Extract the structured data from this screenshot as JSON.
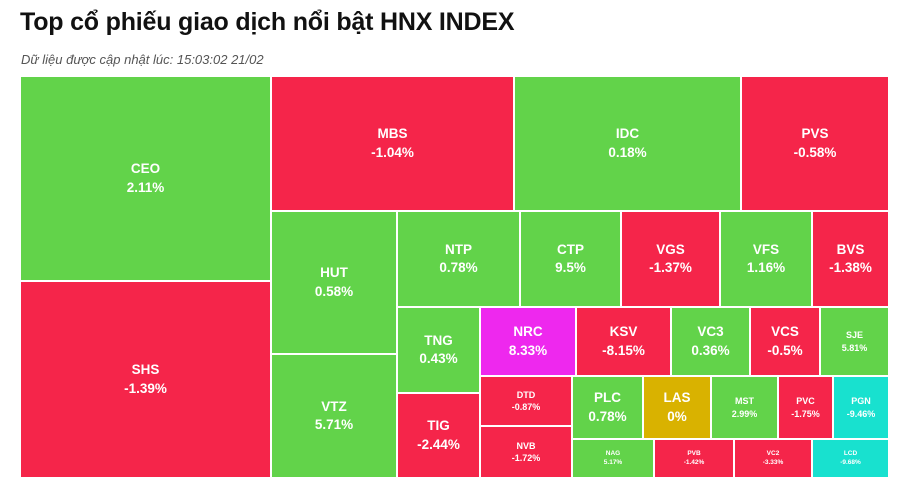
{
  "title": "Top cổ phiếu giao dịch nổi bật HNX INDEX",
  "subtitle": "Dữ liệu được cập nhật lúc: 15:03:02 21/02",
  "colors": {
    "up": "#62d34a",
    "down": "#f5254a",
    "ceiling": "#ee28ee",
    "floor": "#18e1cf",
    "ref": "#d9b200"
  },
  "chart_data": {
    "type": "treemap",
    "items": [
      {
        "ticker": "CEO",
        "change": "2.11%",
        "status": "up"
      },
      {
        "ticker": "SHS",
        "change": "-1.39%",
        "status": "down"
      },
      {
        "ticker": "MBS",
        "change": "-1.04%",
        "status": "down"
      },
      {
        "ticker": "IDC",
        "change": "0.18%",
        "status": "up"
      },
      {
        "ticker": "PVS",
        "change": "-0.58%",
        "status": "down"
      },
      {
        "ticker": "HUT",
        "change": "0.58%",
        "status": "up"
      },
      {
        "ticker": "VTZ",
        "change": "5.71%",
        "status": "up"
      },
      {
        "ticker": "NTP",
        "change": "0.78%",
        "status": "up"
      },
      {
        "ticker": "CTP",
        "change": "9.5%",
        "status": "up"
      },
      {
        "ticker": "VGS",
        "change": "-1.37%",
        "status": "down"
      },
      {
        "ticker": "VFS",
        "change": "1.16%",
        "status": "up"
      },
      {
        "ticker": "BVS",
        "change": "-1.38%",
        "status": "down"
      },
      {
        "ticker": "TNG",
        "change": "0.43%",
        "status": "up"
      },
      {
        "ticker": "TIG",
        "change": "-2.44%",
        "status": "down"
      },
      {
        "ticker": "NRC",
        "change": "8.33%",
        "status": "ceiling"
      },
      {
        "ticker": "KSV",
        "change": "-8.15%",
        "status": "down"
      },
      {
        "ticker": "VC3",
        "change": "0.36%",
        "status": "up"
      },
      {
        "ticker": "VCS",
        "change": "-0.5%",
        "status": "down"
      },
      {
        "ticker": "SJE",
        "change": "5.81%",
        "status": "up"
      },
      {
        "ticker": "DTD",
        "change": "-0.87%",
        "status": "down"
      },
      {
        "ticker": "NVB",
        "change": "-1.72%",
        "status": "down"
      },
      {
        "ticker": "PLC",
        "change": "0.78%",
        "status": "up"
      },
      {
        "ticker": "LAS",
        "change": "0%",
        "status": "ref"
      },
      {
        "ticker": "MST",
        "change": "2.99%",
        "status": "up"
      },
      {
        "ticker": "PVC",
        "change": "-1.75%",
        "status": "down"
      },
      {
        "ticker": "PGN",
        "change": "-9.46%",
        "status": "floor"
      },
      {
        "ticker": "NAG",
        "change": "5.17%",
        "status": "up"
      },
      {
        "ticker": "PVB",
        "change": "-1.42%",
        "status": "down"
      },
      {
        "ticker": "VC2",
        "change": "-3.33%",
        "status": "down"
      },
      {
        "ticker": "LCD",
        "change": "-9.68%",
        "status": "floor"
      }
    ]
  }
}
